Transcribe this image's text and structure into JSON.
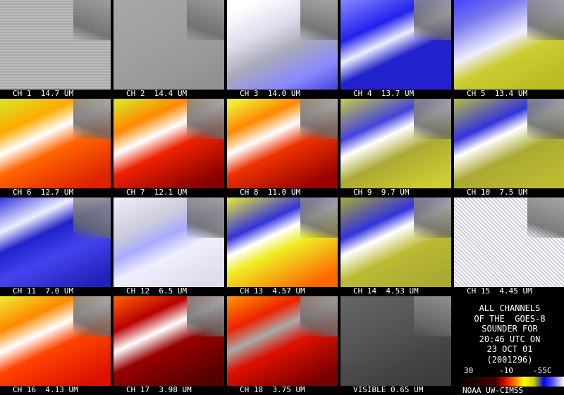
{
  "panels": [
    {
      "label": "CH 1  14.7 UM"
    },
    {
      "label": "CH 2  14.4 UM"
    },
    {
      "label": "CH 3  14.0 UM"
    },
    {
      "label": "CH 4  13.7 UM"
    },
    {
      "label": "CH 5  13.4 UM"
    },
    {
      "label": "CH 6  12.7 UM"
    },
    {
      "label": "CH 7  12.1 UM"
    },
    {
      "label": "CH 8  11.0 UM"
    },
    {
      "label": "CH 9  9.7 UM"
    },
    {
      "label": "CH 10  7.5 UM"
    },
    {
      "label": "CH 11  7.0 UM"
    },
    {
      "label": "CH 12  6.5 UM"
    },
    {
      "label": "CH 13  4.57 UM"
    },
    {
      "label": "CH 14  4.53 UM"
    },
    {
      "label": "CH 15  4.45 UM"
    },
    {
      "label": "CH 16  4.13 UM"
    },
    {
      "label": "CH 17  3.98 UM"
    },
    {
      "label": "CH 18  3.75 UM"
    },
    {
      "label": "VISIBLE 0.65 UM"
    }
  ],
  "info": {
    "lines": [
      "ALL CHANNELS",
      "OF THE  GOES-8",
      "SOUNDER FOR",
      "20:46 UTC ON",
      "23 OCT 01",
      "(2001296)"
    ],
    "scale_labels": [
      "30",
      "-10",
      "-55C"
    ],
    "credit": "NOAA UW-CIMSS"
  }
}
